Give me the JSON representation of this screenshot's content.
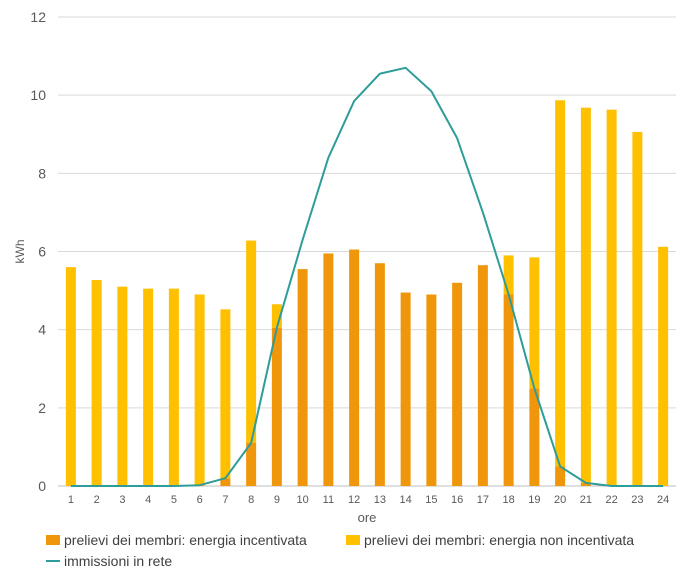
{
  "chart_data": {
    "type": "bar",
    "stacked": true,
    "categories": [
      "1",
      "2",
      "3",
      "4",
      "5",
      "6",
      "7",
      "8",
      "9",
      "10",
      "11",
      "12",
      "13",
      "14",
      "15",
      "16",
      "17",
      "18",
      "19",
      "20",
      "21",
      "22",
      "23",
      "24"
    ],
    "xlabel": "ore",
    "ylabel": "kWh",
    "ylim": [
      0,
      12
    ],
    "yticks": [
      0,
      2,
      4,
      6,
      8,
      10,
      12
    ],
    "grid": true,
    "legend_position": "bottom",
    "series": [
      {
        "name": "prelievi dei membri: energia incentivata",
        "type": "bar",
        "color": "#F0960A",
        "values": [
          0,
          0,
          0,
          0,
          0,
          0.02,
          0.2,
          1.1,
          4.05,
          5.55,
          5.95,
          6.05,
          5.7,
          4.95,
          4.9,
          5.2,
          5.65,
          4.9,
          2.5,
          0.5,
          0.08,
          0,
          0,
          0
        ]
      },
      {
        "name": "prelievi dei membri: energia non incentivata",
        "type": "bar",
        "color": "#FFC000",
        "values": [
          5.6,
          5.27,
          5.1,
          5.05,
          5.05,
          4.88,
          4.32,
          5.18,
          0.6,
          0,
          0,
          0,
          0,
          0,
          0,
          0,
          0,
          1.0,
          3.35,
          9.37,
          9.6,
          9.63,
          9.06,
          6.12
        ]
      },
      {
        "name": "immissioni in rete",
        "type": "line",
        "color": "#2E9C98",
        "values": [
          0,
          0,
          0,
          0,
          0,
          0.02,
          0.2,
          1.1,
          4.05,
          6.3,
          8.4,
          9.85,
          10.55,
          10.7,
          10.1,
          8.9,
          7.0,
          4.9,
          2.5,
          0.5,
          0.08,
          0,
          0,
          0
        ]
      }
    ]
  }
}
